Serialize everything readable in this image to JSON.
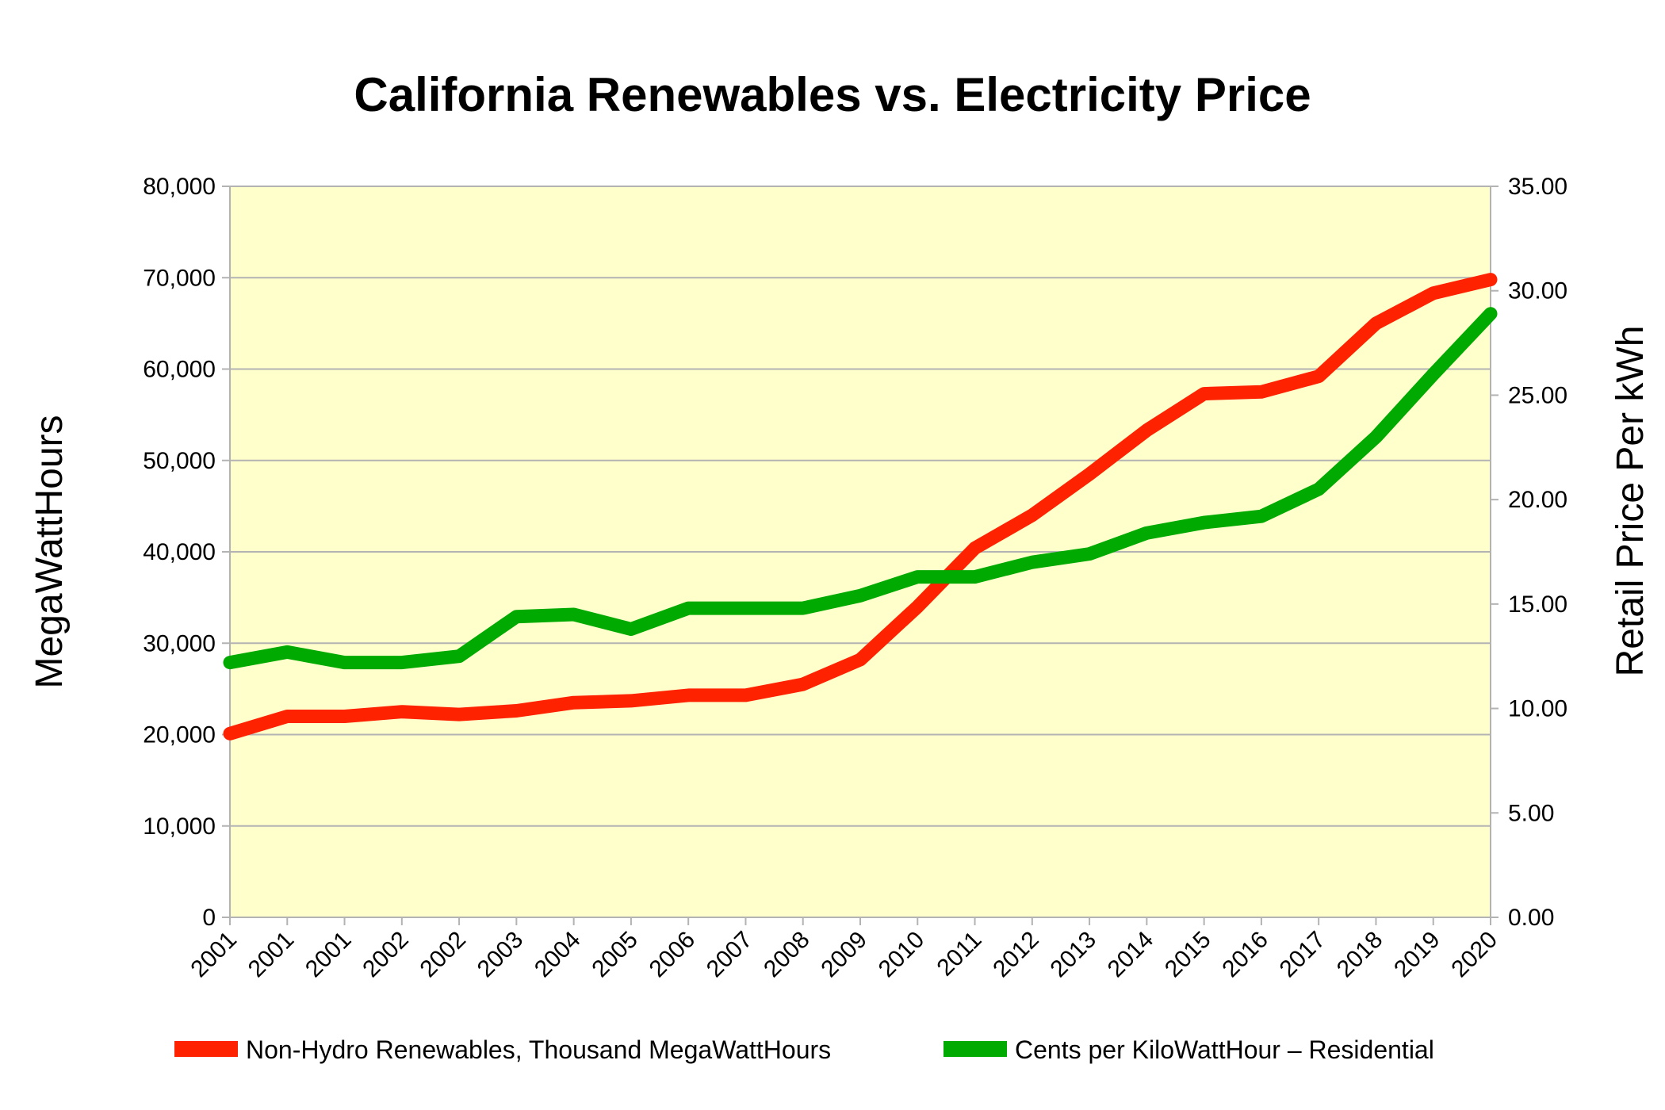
{
  "chart_data": {
    "type": "line",
    "title": "California Renewables vs. Electricity Price",
    "categories": [
      "2001",
      "2001",
      "2001",
      "2002",
      "2002",
      "2003",
      "2004",
      "2005",
      "2006",
      "2007",
      "2008",
      "2009",
      "2010",
      "2011",
      "2012",
      "2013",
      "2014",
      "2015",
      "2016",
      "2017",
      "2018",
      "2019",
      "2020"
    ],
    "y_left": {
      "label": "MegaWattHours",
      "min": 0,
      "max": 80000,
      "step": 10000,
      "tick_labels": [
        "0",
        "10,000",
        "20,000",
        "30,000",
        "40,000",
        "50,000",
        "60,000",
        "70,000",
        "80,000"
      ]
    },
    "y_right": {
      "label": "Retail Price Per kWh",
      "min": 0,
      "max": 35,
      "step": 5,
      "tick_labels": [
        "0.00",
        "5.00",
        "10.00",
        "15.00",
        "20.00",
        "25.00",
        "30.00",
        "35.00"
      ]
    },
    "series": [
      {
        "name": "Non-Hydro Renewables, Thousand MegaWattHours",
        "axis": "left",
        "color": "#ff2200",
        "values": [
          20100,
          22000,
          22000,
          22500,
          22200,
          22600,
          23500,
          23700,
          24300,
          24300,
          25500,
          28200,
          34000,
          40400,
          44000,
          48500,
          53300,
          57300,
          57500,
          59200,
          65000,
          68300,
          69800
        ]
      },
      {
        "name": "Cents per KiloWattHour – Residential",
        "axis": "right",
        "color": "#00aa00",
        "values": [
          12.2,
          12.7,
          12.2,
          12.2,
          12.5,
          14.4,
          14.5,
          13.8,
          14.8,
          14.8,
          14.8,
          15.4,
          16.3,
          16.3,
          17.0,
          17.4,
          18.4,
          18.9,
          19.2,
          20.5,
          23.0,
          26.0,
          28.9
        ]
      }
    ],
    "grid": true,
    "plot_background": "#ffffcc",
    "legend_position": "bottom"
  }
}
